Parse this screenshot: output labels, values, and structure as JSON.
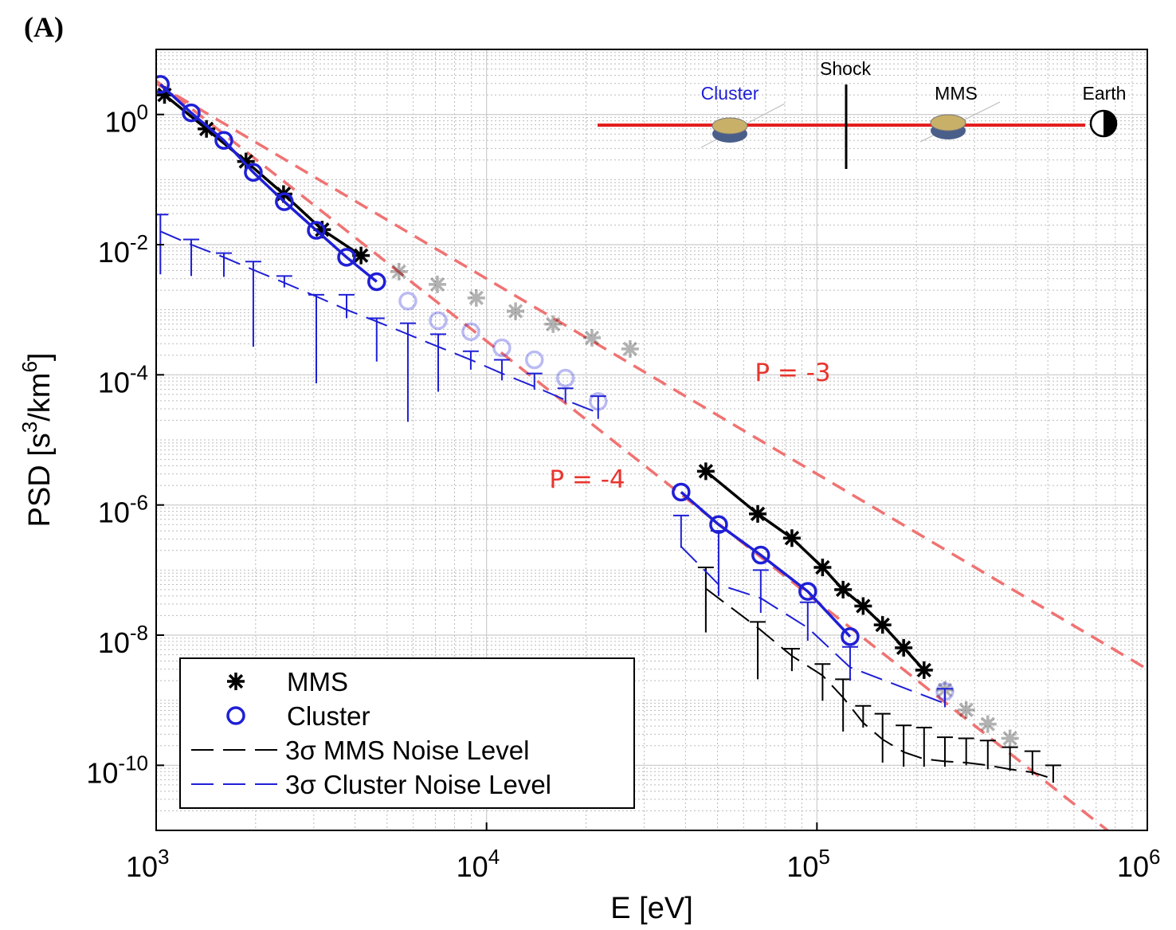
{
  "chart_data": {
    "type": "line",
    "panel_label": "(A)",
    "log_x": true,
    "log_y": true,
    "xlabel": "E [eV]",
    "ylabel": [
      {
        "text": "PSD [s"
      },
      {
        "text": "3",
        "sup": true
      },
      {
        "text": "/km"
      },
      {
        "text": "6",
        "sup": true
      },
      {
        "text": "]"
      }
    ],
    "xlim": [
      1000,
      1000000
    ],
    "ylim": [
      1e-11,
      10
    ],
    "xticks": [
      {
        "value": 1000,
        "base": "10",
        "exponent": "3"
      },
      {
        "value": 10000,
        "base": "10",
        "exponent": "4"
      },
      {
        "value": 100000,
        "base": "10",
        "exponent": "5"
      },
      {
        "value": 1000000,
        "base": "10",
        "exponent": "6"
      }
    ],
    "yticks": [
      {
        "value": 1e-10,
        "base": "10",
        "exponent": "-10"
      },
      {
        "value": 1e-08,
        "base": "10",
        "exponent": "-8"
      },
      {
        "value": 1e-06,
        "base": "10",
        "exponent": "-6"
      },
      {
        "value": 0.0001,
        "base": "10",
        "exponent": "-4"
      },
      {
        "value": 0.01,
        "base": "10",
        "exponent": "-2"
      },
      {
        "value": 1,
        "base": "10",
        "exponent": "0"
      }
    ],
    "grid": true,
    "minor_grid": true,
    "legend": "lower left",
    "series": [
      {
        "name": "MMS",
        "marker": "star",
        "color": "#000000",
        "x": [
          1060,
          1420,
          1870,
          2430,
          3180,
          4170,
          5430,
          7100,
          9310,
          12240,
          15900,
          20850,
          27200,
          46100,
          66200,
          84000,
          104000,
          120000,
          138000,
          158000,
          183000,
          211000,
          244000,
          283000,
          329000,
          384000
        ],
        "values": [
          2.0,
          0.6,
          0.19,
          0.06,
          0.017,
          0.0068,
          0.00385,
          0.00245,
          0.00152,
          0.00095,
          0.0006,
          0.00037,
          0.00025,
          3.3e-06,
          7.3e-07,
          3.1e-07,
          1.1e-07,
          5e-08,
          2.8e-08,
          1.44e-08,
          6.4e-09,
          2.9e-09,
          1.44e-09,
          7.1e-10,
          4.3e-10,
          2.6e-10
        ],
        "faded": [
          false,
          false,
          false,
          false,
          false,
          false,
          true,
          true,
          true,
          true,
          true,
          true,
          true,
          false,
          false,
          false,
          false,
          false,
          false,
          false,
          false,
          false,
          true,
          true,
          true,
          true
        ]
      },
      {
        "name": "Cluster",
        "marker": "circle",
        "color": "#1f1fd6",
        "x": [
          1030,
          1277,
          1603,
          1968,
          2443,
          3053,
          3770,
          4650,
          5780,
          7140,
          8960,
          11130,
          13960,
          17330,
          21770,
          38800,
          50400,
          67600,
          93800,
          126000,
          244000
        ],
        "values": [
          2.9,
          1.06,
          0.4,
          0.129,
          0.0457,
          0.0166,
          0.0064,
          0.0027,
          0.00136,
          0.00068,
          0.00046,
          0.00026,
          0.00017,
          8.9e-05,
          3.9e-05,
          1.58e-06,
          5e-07,
          1.7e-07,
          4.7e-08,
          9.5e-09,
          1.36e-09
        ],
        "faded": [
          false,
          false,
          false,
          false,
          false,
          false,
          false,
          false,
          true,
          true,
          true,
          true,
          true,
          true,
          true,
          false,
          false,
          false,
          false,
          false,
          true
        ]
      },
      {
        "name": "3σ MMS Noise Level",
        "style": "dashed",
        "color": "#000000",
        "x": [
          46100,
          66200,
          84000,
          104000,
          120000,
          138000,
          158000,
          183000,
          211000,
          244000,
          283000,
          329000,
          384000,
          449000,
          519000
        ],
        "values": [
          5.2e-08,
          1.3e-08,
          4.8e-09,
          2.4e-09,
          1.1e-09,
          4.5e-10,
          2.5e-10,
          1.6e-10,
          1.25e-10,
          1.15e-10,
          1.1e-10,
          1e-10,
          8.7e-11,
          7.8e-11,
          6.2e-11
        ],
        "upper": [
          1.1e-07,
          1.6e-08,
          6.2e-09,
          3.6e-09,
          2.1e-09,
          8.2e-10,
          6.2e-10,
          4.1e-10,
          3.8e-10,
          2.7e-10,
          2.6e-10,
          2.4e-10,
          1.9e-10,
          1.65e-10,
          1e-10
        ],
        "lower": [
          1.1e-08,
          2.1e-09,
          2.8e-09,
          9.8e-10,
          3.3e-10,
          3.8e-10,
          1.1e-10,
          9.5e-11,
          9.5e-11,
          9.5e-11,
          1e-10,
          8.7e-11,
          8.2e-11,
          7.1e-11,
          5.4e-11
        ]
      },
      {
        "name": "3σ Cluster Noise Level",
        "style": "dashed",
        "color": "#1f1fd6",
        "x": [
          1030,
          1277,
          1603,
          1968,
          2443,
          3053,
          3770,
          4650,
          5780,
          7140,
          8960,
          11130,
          13960,
          17330,
          21770,
          null,
          38800,
          50400,
          67600,
          93800,
          126000,
          244000
        ],
        "values": [
          0.016,
          0.01,
          0.0064,
          0.0041,
          0.0026,
          0.0016,
          0.001,
          0.00066,
          0.00042,
          0.00027,
          0.00017,
          0.000105,
          6.6e-05,
          4.1e-05,
          2.6e-05,
          null,
          2.3e-07,
          6e-08,
          3.7e-08,
          1.3e-08,
          3.2e-09,
          8.9e-10
        ],
        "upper": [
          0.029,
          0.012,
          0.0074,
          0.0055,
          0.0033,
          0.0017,
          0.0017,
          0.00074,
          0.00062,
          0.00042,
          0.00023,
          0.00017,
          0.000105,
          6.2e-05,
          4.7e-05,
          null,
          6.9e-07,
          4e-07,
          1e-07,
          3.2e-08,
          6.6e-09,
          1.5e-09
        ],
        "lower": [
          0.0035,
          0.0033,
          0.0032,
          0.00027,
          0.0022,
          7.4e-05,
          0.00074,
          0.00016,
          1.9e-05,
          5.5e-05,
          0.00012,
          8.2e-05,
          5.9e-05,
          3.7e-05,
          2.1e-05,
          null,
          2.2e-07,
          4e-08,
          2.2e-08,
          8.2e-09,
          2e-09,
          7.8e-10
        ]
      }
    ],
    "power_laws": [
      {
        "label": "P = -3",
        "x": [
          1000,
          1000000
        ],
        "values": [
          3,
          3e-09
        ],
        "color": "#f07272"
      },
      {
        "label": "P = -4",
        "x": [
          1000,
          1000000
        ],
        "values": [
          3.3,
          3.3e-12
        ],
        "color": "#f07272"
      }
    ],
    "inset": {
      "cluster": "Cluster",
      "shock": "Shock",
      "mms": "MMS",
      "earth": "Earth"
    }
  }
}
